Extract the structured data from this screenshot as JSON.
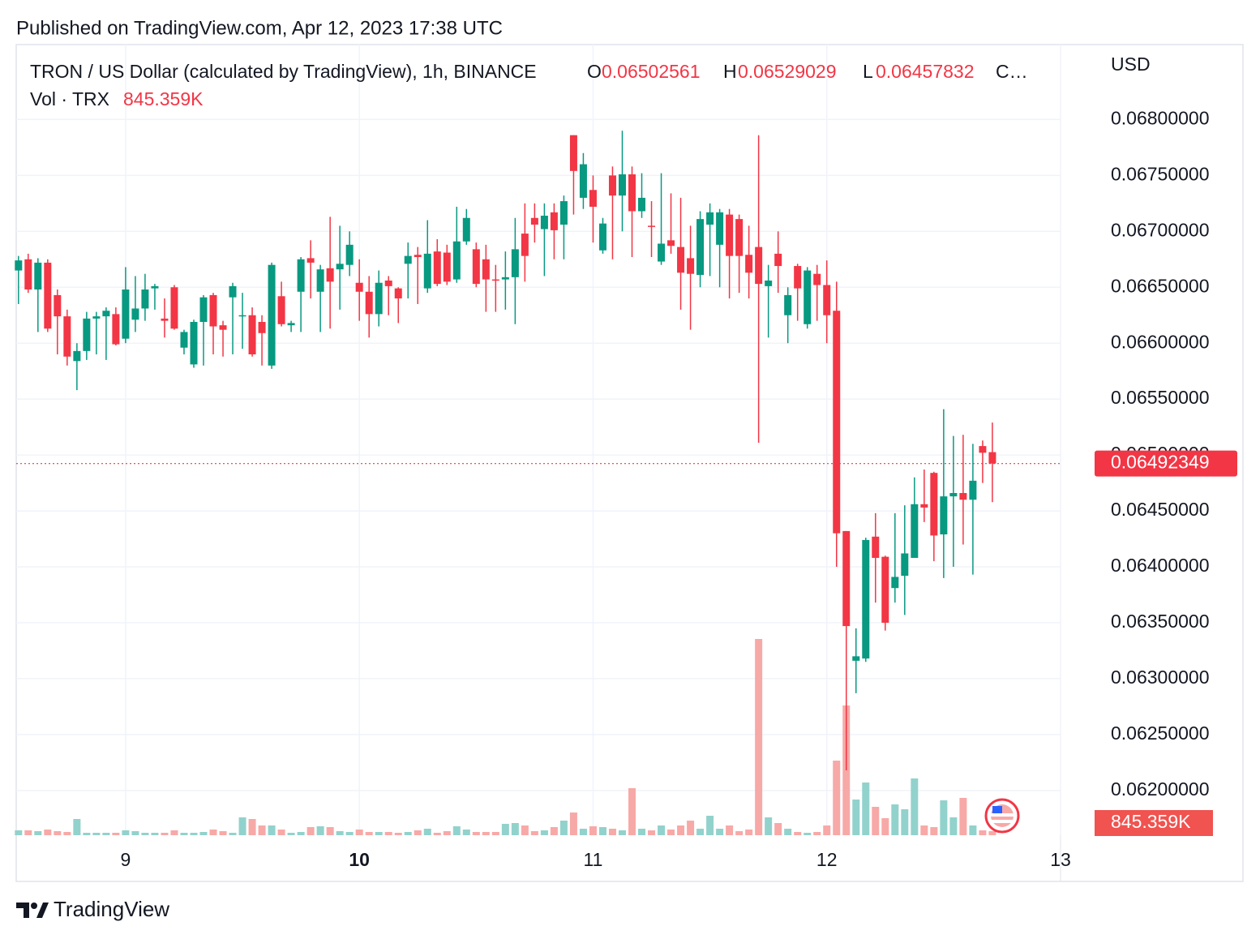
{
  "header": {
    "published": "Published on TradingView.com, Apr 12, 2023 17:38 UTC"
  },
  "footer": {
    "brand": "TradingView"
  },
  "chart_data": {
    "type": "candlestick",
    "title": "TRON / US Dollar (calculated by TradingView), 1h, BINANCE",
    "ohlc_letters": [
      "O",
      "H",
      "L",
      "C…"
    ],
    "volume_title": "Vol · TRX",
    "last_volume_label": "845.359K",
    "y_axis_label": "USD",
    "up_color": "#089981",
    "down_color": "#f23645",
    "volume_up_color": "#92d2cc",
    "volume_down_color": "#f7a9a7",
    "grid": true,
    "xlim": [
      8.532,
      13.0
    ],
    "xticks": [
      9,
      10,
      11,
      12,
      13
    ],
    "ylim": [
      0.0616,
      0.06867
    ],
    "yticks": [
      {
        "value": 0.062,
        "label": "0.06200000"
      },
      {
        "value": 0.0625,
        "label": "0.06250000"
      },
      {
        "value": 0.063,
        "label": "0.06300000"
      },
      {
        "value": 0.0635,
        "label": "0.06350000"
      },
      {
        "value": 0.064,
        "label": "0.06400000"
      },
      {
        "value": 0.0645,
        "label": "0.06450000"
      },
      {
        "value": 0.065,
        "label": "0.06500000"
      },
      {
        "value": 0.0655,
        "label": "0.06550000"
      },
      {
        "value": 0.066,
        "label": "0.06600000"
      },
      {
        "value": 0.0665,
        "label": "0.06650000"
      },
      {
        "value": 0.067,
        "label": "0.06700000"
      },
      {
        "value": 0.0675,
        "label": "0.06750000"
      },
      {
        "value": 0.068,
        "label": "0.06800000"
      }
    ],
    "x": [
      8.5417,
      8.5833,
      8.625,
      8.6667,
      8.7083,
      8.75,
      8.7917,
      8.8333,
      8.875,
      8.9167,
      8.9583,
      9,
      9.0417,
      9.0833,
      9.125,
      9.1667,
      9.2083,
      9.25,
      9.2917,
      9.3333,
      9.375,
      9.4167,
      9.4583,
      9.5,
      9.5417,
      9.5833,
      9.625,
      9.6667,
      9.7083,
      9.75,
      9.7917,
      9.8333,
      9.875,
      9.9167,
      9.9583,
      10,
      10.0417,
      10.0833,
      10.125,
      10.1667,
      10.2083,
      10.25,
      10.2917,
      10.3333,
      10.375,
      10.4167,
      10.4583,
      10.5,
      10.5417,
      10.5833,
      10.625,
      10.6667,
      10.7083,
      10.75,
      10.7917,
      10.8333,
      10.875,
      10.9167,
      10.9583,
      11,
      11.0417,
      11.0833,
      11.125,
      11.1667,
      11.2083,
      11.25,
      11.2917,
      11.3333,
      11.375,
      11.4167,
      11.4583,
      11.5,
      11.5417,
      11.5833,
      11.625,
      11.6667,
      11.7083,
      11.75,
      11.7917,
      11.8333,
      11.875,
      11.9167,
      11.9583,
      12,
      12.0417,
      12.0833,
      12.125,
      12.1667,
      12.2083,
      12.25,
      12.2917,
      12.3333,
      12.375,
      12.4167,
      12.4583,
      12.5,
      12.5417,
      12.5833,
      12.625,
      12.6667,
      12.7083
    ],
    "open": [
      0.06665,
      0.06675,
      0.06648,
      0.06672,
      0.06643,
      0.06624,
      0.06584,
      0.06593,
      0.06622,
      0.06624,
      0.06626,
      0.06604,
      0.06621,
      0.06631,
      0.06649,
      0.06622,
      0.0665,
      0.06596,
      0.06581,
      0.06619,
      0.06643,
      0.06616,
      0.06641,
      0.06624,
      0.06625,
      0.06619,
      0.0658,
      0.06642,
      0.06616,
      0.06646,
      0.06676,
      0.06646,
      0.06667,
      0.06666,
      0.0667,
      0.06654,
      0.06646,
      0.06626,
      0.06656,
      0.06649,
      0.06671,
      0.06679,
      0.06649,
      0.06682,
      0.06681,
      0.06657,
      0.06691,
      0.06684,
      0.06675,
      0.06657,
      0.06657,
      0.06659,
      0.06698,
      0.06712,
      0.06702,
      0.06717,
      0.06706,
      0.06786,
      0.0673,
      0.06737,
      0.06683,
      0.0675,
      0.06732,
      0.06751,
      0.06718,
      0.06705,
      0.06673,
      0.06692,
      0.06686,
      0.06676,
      0.06661,
      0.06706,
      0.06688,
      0.06715,
      0.06711,
      0.06679,
      0.06686,
      0.06651,
      0.0668,
      0.06625,
      0.06669,
      0.06617,
      0.06662,
      0.06652,
      0.06629,
      0.06432,
      0.06316,
      0.06318,
      0.06427,
      0.06409,
      0.06381,
      0.06392,
      0.06408,
      0.06456,
      0.06484,
      0.06429,
      0.06463,
      0.06466,
      0.0646,
      0.06508,
      0.06502561
    ],
    "high": [
      0.06678,
      0.0668,
      0.06676,
      0.06675,
      0.06648,
      0.0663,
      0.066,
      0.06628,
      0.06628,
      0.06632,
      0.06632,
      0.06668,
      0.0666,
      0.06662,
      0.06653,
      0.0664,
      0.06652,
      0.06612,
      0.06621,
      0.06643,
      0.06645,
      0.0662,
      0.06654,
      0.06645,
      0.06632,
      0.06625,
      0.06672,
      0.06655,
      0.0662,
      0.06677,
      0.06692,
      0.0667,
      0.06713,
      0.06705,
      0.067,
      0.06675,
      0.0666,
      0.06665,
      0.0666,
      0.0665,
      0.0669,
      0.06686,
      0.0671,
      0.06693,
      0.06688,
      0.06722,
      0.0672,
      0.0669,
      0.06688,
      0.0667,
      0.06682,
      0.06712,
      0.06725,
      0.06725,
      0.06725,
      0.06725,
      0.06732,
      0.06786,
      0.0677,
      0.0675,
      0.06712,
      0.06758,
      0.0679,
      0.06758,
      0.06752,
      0.06727,
      0.06752,
      0.06734,
      0.0673,
      0.06705,
      0.06718,
      0.06725,
      0.0672,
      0.0672,
      0.06715,
      0.06705,
      0.06786,
      0.0667,
      0.067,
      0.0665,
      0.06671,
      0.06668,
      0.0667,
      0.06674,
      0.06655,
      0.06432,
      0.06345,
      0.06426,
      0.06448,
      0.0641,
      0.06448,
      0.06455,
      0.0648,
      0.06487,
      0.06485,
      0.06541,
      0.06517,
      0.06518,
      0.0651,
      0.06513,
      0.06529029
    ],
    "low": [
      0.06635,
      0.06645,
      0.0661,
      0.0661,
      0.0659,
      0.0658,
      0.06558,
      0.06585,
      0.0659,
      0.06585,
      0.06598,
      0.066,
      0.0661,
      0.0662,
      0.0663,
      0.06605,
      0.06612,
      0.0659,
      0.06578,
      0.0658,
      0.0659,
      0.06588,
      0.0659,
      0.06595,
      0.06588,
      0.0658,
      0.06577,
      0.06615,
      0.0661,
      0.0661,
      0.0664,
      0.0661,
      0.06613,
      0.0663,
      0.0666,
      0.0662,
      0.06605,
      0.06615,
      0.06625,
      0.06618,
      0.0664,
      0.06635,
      0.06645,
      0.06651,
      0.06652,
      0.06654,
      0.06688,
      0.0665,
      0.06628,
      0.06628,
      0.0663,
      0.06617,
      0.06655,
      0.0669,
      0.0666,
      0.06675,
      0.06675,
      0.06715,
      0.0672,
      0.0669,
      0.0668,
      0.06675,
      0.067,
      0.06677,
      0.06712,
      0.06677,
      0.0667,
      0.0668,
      0.0663,
      0.06612,
      0.0665,
      0.0666,
      0.0665,
      0.0664,
      0.06645,
      0.0664,
      0.06511,
      0.06605,
      0.06645,
      0.066,
      0.0662,
      0.06613,
      0.0662,
      0.066,
      0.064,
      0.06218,
      0.06287,
      0.06315,
      0.06368,
      0.06343,
      0.06368,
      0.06357,
      0.06408,
      0.0644,
      0.06405,
      0.0639,
      0.064,
      0.0642,
      0.06393,
      0.06475,
      0.06457832
    ],
    "close": [
      0.06674,
      0.06648,
      0.06672,
      0.06613,
      0.06624,
      0.06588,
      0.06593,
      0.06622,
      0.06624,
      0.06629,
      0.06599,
      0.06648,
      0.06631,
      0.06648,
      0.06651,
      0.0662,
      0.06613,
      0.0661,
      0.06619,
      0.06641,
      0.06615,
      0.06612,
      0.06651,
      0.06625,
      0.0659,
      0.06609,
      0.0667,
      0.06617,
      0.06618,
      0.06675,
      0.06672,
      0.06666,
      0.06655,
      0.06671,
      0.06688,
      0.06646,
      0.06626,
      0.06654,
      0.06651,
      0.0664,
      0.06678,
      0.06677,
      0.0668,
      0.06653,
      0.06655,
      0.06691,
      0.06712,
      0.06653,
      0.06657,
      0.06656,
      0.06659,
      0.06684,
      0.06678,
      0.06706,
      0.06714,
      0.06701,
      0.06727,
      0.06754,
      0.0676,
      0.06722,
      0.06707,
      0.06732,
      0.06751,
      0.06718,
      0.0673,
      0.06704,
      0.06689,
      0.06687,
      0.06663,
      0.06662,
      0.06711,
      0.06717,
      0.06717,
      0.06678,
      0.06678,
      0.06663,
      0.06653,
      0.06656,
      0.06669,
      0.06643,
      0.06649,
      0.06665,
      0.06652,
      0.06625,
      0.0643,
      0.06347,
      0.0632,
      0.06424,
      0.06408,
      0.0635,
      0.06391,
      0.06412,
      0.06456,
      0.06453,
      0.06428,
      0.06463,
      0.06466,
      0.0646,
      0.06477,
      0.06502,
      0.06492349
    ],
    "volumes": [
      1020000,
      1020000,
      850000,
      1190000,
      850000,
      680000,
      3400000,
      510000,
      510000,
      510000,
      510000,
      1020000,
      850000,
      510000,
      510000,
      510000,
      1020000,
      510000,
      510000,
      680000,
      1190000,
      850000,
      510000,
      3740000,
      3400000,
      2040000,
      2040000,
      1190000,
      510000,
      680000,
      1700000,
      1870000,
      1700000,
      850000,
      680000,
      1190000,
      680000,
      680000,
      680000,
      510000,
      680000,
      1020000,
      1360000,
      510000,
      850000,
      1870000,
      1190000,
      680000,
      680000,
      680000,
      2380000,
      2550000,
      2040000,
      850000,
      1020000,
      1700000,
      3060000,
      4760000,
      1360000,
      1870000,
      1700000,
      1360000,
      1020000,
      9860000,
      1360000,
      1020000,
      2040000,
      1190000,
      2040000,
      3060000,
      1360000,
      4080000,
      1360000,
      2040000,
      850000,
      1190000,
      41140000,
      3740000,
      2550000,
      1360000,
      680000,
      510000,
      680000,
      2040000,
      15640000,
      27200000,
      7480000,
      11050000,
      5950000,
      3570000,
      6460000,
      5440000,
      11900000,
      2040000,
      1700000,
      7310000,
      3740000,
      7820000,
      2040000,
      1020000,
      845359
    ]
  }
}
